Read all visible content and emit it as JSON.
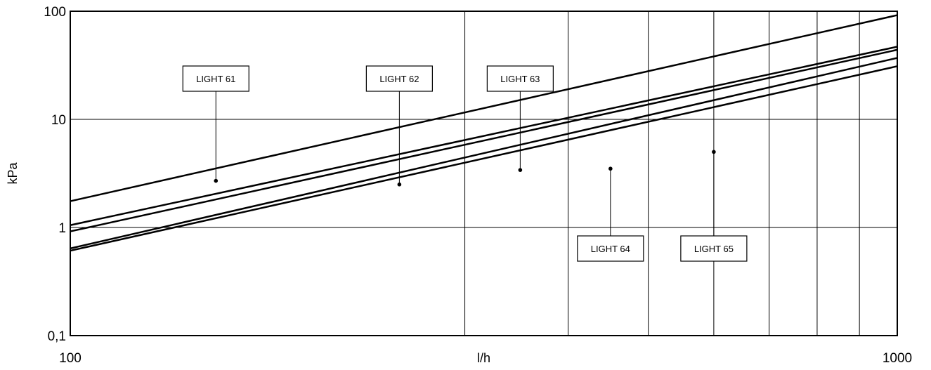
{
  "chart_data": {
    "type": "line",
    "title": "",
    "xlabel": "l/h",
    "ylabel": "kPa",
    "x_scale": "log",
    "y_scale": "log",
    "xlim": [
      100,
      1000
    ],
    "ylim": [
      0.1,
      100
    ],
    "x_ticks": [
      {
        "value": 100,
        "label": "100"
      },
      {
        "value": 1000,
        "label": "1000"
      }
    ],
    "y_ticks": [
      {
        "value": 0.1,
        "label": "0,1"
      },
      {
        "value": 1,
        "label": "1"
      },
      {
        "value": 10,
        "label": "10"
      },
      {
        "value": 100,
        "label": "100"
      }
    ],
    "x_gridlines": [
      300,
      400,
      500,
      600,
      700,
      800,
      900
    ],
    "y_gridlines": [
      1,
      10
    ],
    "grid": true,
    "line_color": "#000000",
    "series": [
      {
        "name": "LIGHT 61",
        "x": [
          100,
          1000
        ],
        "y": [
          1.75,
          92
        ],
        "marker": {
          "x": 150,
          "y": 2.7
        },
        "label_pos": "above"
      },
      {
        "name": "LIGHT 62",
        "x": [
          100,
          1000
        ],
        "y": [
          1.05,
          47
        ],
        "marker": {
          "x": 250,
          "y": 2.5
        },
        "label_pos": "above"
      },
      {
        "name": "LIGHT 63",
        "x": [
          100,
          1000
        ],
        "y": [
          0.92,
          44
        ],
        "marker": {
          "x": 350,
          "y": 3.4
        },
        "label_pos": "above"
      },
      {
        "name": "LIGHT 64",
        "x": [
          100,
          1000
        ],
        "y": [
          0.64,
          37
        ],
        "marker": {
          "x": 450,
          "y": 3.5
        },
        "label_pos": "below"
      },
      {
        "name": "LIGHT 65",
        "x": [
          100,
          1000
        ],
        "y": [
          0.61,
          31
        ],
        "marker": {
          "x": 600,
          "y": 5.0
        },
        "label_pos": "below"
      }
    ]
  }
}
